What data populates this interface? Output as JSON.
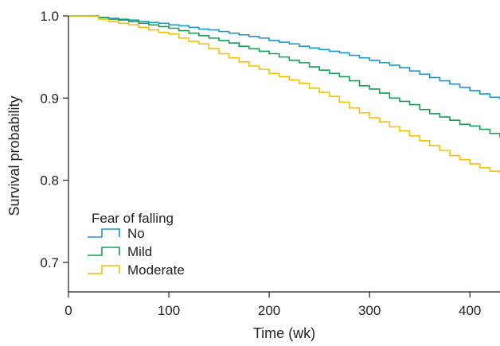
{
  "chart_data": {
    "type": "line",
    "step": true,
    "xlabel": "Time (wk)",
    "ylabel": "Survival probability",
    "xlim": [
      0,
      430
    ],
    "ylim": [
      0.664,
      1.0
    ],
    "xticks": [
      0,
      100,
      200,
      300,
      400
    ],
    "yticks": [
      0.7,
      0.8,
      0.9,
      1.0
    ],
    "xtick_labels": [
      "0",
      "100",
      "200",
      "300",
      "400"
    ],
    "ytick_labels": [
      "0.7",
      "0.8",
      "0.9",
      "1.0"
    ],
    "grid": false,
    "legend": {
      "title": "Fear of falling",
      "placement": "lower-left"
    },
    "series": [
      {
        "name": "No",
        "color": "#1a96cf",
        "x": [
          0,
          10,
          20,
          30,
          40,
          50,
          60,
          70,
          80,
          90,
          100,
          110,
          120,
          130,
          140,
          150,
          160,
          170,
          180,
          190,
          200,
          210,
          220,
          230,
          240,
          250,
          260,
          270,
          280,
          290,
          300,
          310,
          320,
          330,
          340,
          350,
          360,
          370,
          380,
          390,
          400,
          410,
          420,
          430
        ],
        "values": [
          1.0,
          1.0,
          1.0,
          0.998,
          0.997,
          0.996,
          0.995,
          0.993,
          0.992,
          0.991,
          0.989,
          0.988,
          0.986,
          0.984,
          0.983,
          0.981,
          0.979,
          0.977,
          0.975,
          0.973,
          0.97,
          0.968,
          0.966,
          0.963,
          0.961,
          0.959,
          0.957,
          0.955,
          0.952,
          0.949,
          0.946,
          0.943,
          0.94,
          0.937,
          0.933,
          0.929,
          0.925,
          0.921,
          0.917,
          0.913,
          0.909,
          0.905,
          0.901,
          0.898
        ]
      },
      {
        "name": "Mild",
        "color": "#14a050",
        "x": [
          0,
          10,
          20,
          30,
          40,
          50,
          60,
          70,
          80,
          90,
          100,
          110,
          120,
          130,
          140,
          150,
          160,
          170,
          180,
          190,
          200,
          210,
          220,
          230,
          240,
          250,
          260,
          270,
          280,
          290,
          300,
          310,
          320,
          330,
          340,
          350,
          360,
          370,
          380,
          390,
          400,
          410,
          420,
          430
        ],
        "values": [
          1.0,
          1.0,
          1.0,
          0.998,
          0.996,
          0.995,
          0.993,
          0.991,
          0.989,
          0.987,
          0.985,
          0.982,
          0.979,
          0.976,
          0.973,
          0.97,
          0.967,
          0.963,
          0.96,
          0.957,
          0.954,
          0.95,
          0.946,
          0.943,
          0.938,
          0.934,
          0.93,
          0.926,
          0.921,
          0.915,
          0.911,
          0.906,
          0.9,
          0.896,
          0.892,
          0.886,
          0.881,
          0.877,
          0.873,
          0.868,
          0.866,
          0.862,
          0.857,
          0.852
        ]
      },
      {
        "name": "Moderate",
        "color": "#f2c200",
        "x": [
          0,
          10,
          20,
          30,
          40,
          50,
          60,
          70,
          80,
          90,
          100,
          110,
          120,
          130,
          140,
          150,
          160,
          170,
          180,
          190,
          200,
          210,
          220,
          230,
          240,
          250,
          260,
          270,
          280,
          290,
          300,
          310,
          320,
          330,
          340,
          350,
          360,
          370,
          380,
          390,
          400,
          410,
          420,
          430
        ],
        "values": [
          1.0,
          1.0,
          1.0,
          0.996,
          0.993,
          0.991,
          0.989,
          0.986,
          0.983,
          0.98,
          0.978,
          0.973,
          0.969,
          0.966,
          0.96,
          0.954,
          0.949,
          0.944,
          0.939,
          0.935,
          0.93,
          0.926,
          0.922,
          0.918,
          0.912,
          0.907,
          0.902,
          0.895,
          0.888,
          0.882,
          0.876,
          0.871,
          0.865,
          0.86,
          0.854,
          0.848,
          0.842,
          0.836,
          0.83,
          0.825,
          0.82,
          0.815,
          0.811,
          0.808
        ]
      }
    ]
  }
}
